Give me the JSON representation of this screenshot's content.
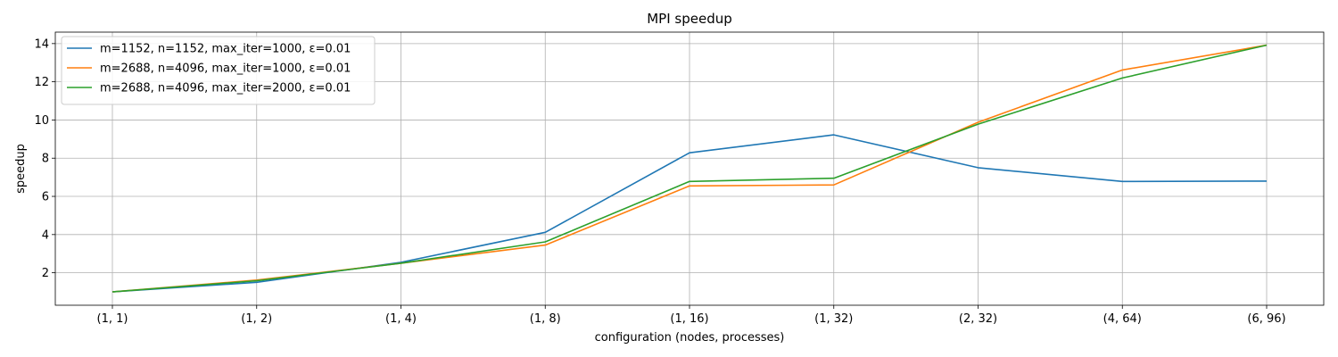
{
  "chart_data": {
    "type": "line",
    "title": "MPI speedup",
    "xlabel": "configuration (nodes, processes)",
    "ylabel": "speedup",
    "categories": [
      "(1, 1)",
      "(1, 2)",
      "(1, 4)",
      "(1, 8)",
      "(1, 16)",
      "(1, 32)",
      "(2, 32)",
      "(4, 64)",
      "(6, 96)"
    ],
    "ylim": [
      0.3,
      14.6
    ],
    "yticks": [
      2,
      4,
      6,
      8,
      10,
      12,
      14
    ],
    "grid": true,
    "legend_position": "top-left",
    "series": [
      {
        "name": "m=1152, n=1152, max_iter=1000, ε=0.01",
        "color": "#1f77b4",
        "values": [
          1.0,
          1.5,
          2.55,
          4.12,
          8.28,
          9.22,
          7.5,
          6.78,
          6.8
        ]
      },
      {
        "name": "m=2688, n=4096, max_iter=1000, ε=0.01",
        "color": "#ff7f0e",
        "values": [
          1.0,
          1.62,
          2.5,
          3.45,
          6.55,
          6.6,
          9.88,
          12.62,
          13.92
        ]
      },
      {
        "name": "m=2688, n=4096, max_iter=2000, ε=0.01",
        "color": "#2ca02c",
        "values": [
          1.0,
          1.58,
          2.5,
          3.62,
          6.78,
          6.95,
          9.78,
          12.2,
          13.92
        ]
      }
    ]
  }
}
